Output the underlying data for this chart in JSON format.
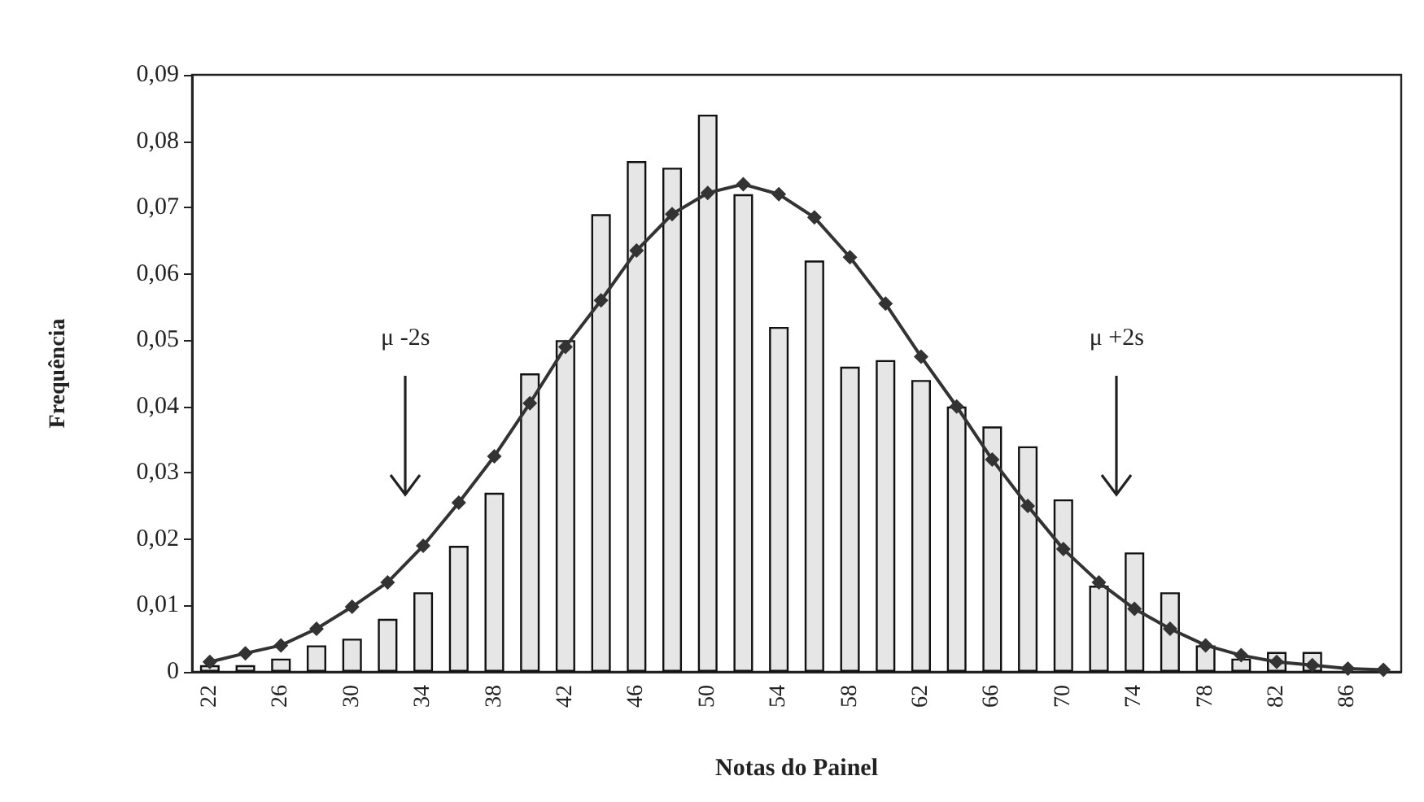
{
  "chart_data": {
    "type": "bar",
    "xlabel": "Notas do Painel",
    "ylabel": "Frequência",
    "categories": [
      "22",
      null,
      "26",
      null,
      "30",
      null,
      "34",
      null,
      "38",
      null,
      "42",
      null,
      "46",
      null,
      "50",
      null,
      "54",
      null,
      "58",
      null,
      "62",
      null,
      "66",
      null,
      "70",
      null,
      "74",
      null,
      "78",
      null,
      "82",
      null,
      "86",
      null
    ],
    "series": [
      {
        "color": "#e6e6e6",
        "values": [
          0.001,
          0.001,
          0.002,
          0.004,
          0.005,
          0.008,
          0.012,
          0.019,
          0.027,
          0.045,
          0.05,
          0.069,
          0.077,
          0.076,
          0.084,
          0.072,
          0.052,
          0.062,
          0.046,
          0.047,
          0.044,
          0.04,
          0.037,
          0.034,
          0.026,
          0.013,
          0.018,
          0.012,
          0.004,
          0.002,
          0.003,
          0.003,
          null,
          null
        ]
      },
      {
        "type": "line",
        "color": "#333333",
        "marker": "diamond",
        "line_style": "solid",
        "values": [
          0.0015,
          0.0028,
          0.004,
          0.0065,
          0.0098,
          0.0135,
          0.019,
          0.0255,
          0.0325,
          0.0405,
          0.049,
          0.056,
          0.0635,
          0.069,
          0.0722,
          0.0735,
          0.072,
          0.0685,
          0.0625,
          0.0555,
          0.0475,
          0.04,
          0.032,
          0.025,
          0.0185,
          0.0135,
          0.0095,
          0.0065,
          0.004,
          0.0025,
          0.0015,
          0.001,
          0.0005,
          0.0003
        ]
      }
    ],
    "ylim": [
      0,
      0.09
    ],
    "yticks": [
      {
        "value": 0,
        "label": "0"
      },
      {
        "value": 0.01,
        "label": "0,01"
      },
      {
        "value": 0.02,
        "label": "0,02"
      },
      {
        "value": 0.03,
        "label": "0,03"
      },
      {
        "value": 0.04,
        "label": "0,04"
      },
      {
        "value": 0.05,
        "label": "0,05"
      },
      {
        "value": 0.06,
        "label": "0,06"
      },
      {
        "value": 0.07,
        "label": "0,07"
      },
      {
        "value": 0.08,
        "label": "0,08"
      },
      {
        "value": 0.09,
        "label": "0,09"
      }
    ],
    "annotations": [
      "μ -2s",
      "μ +2s"
    ],
    "grid": false
  }
}
